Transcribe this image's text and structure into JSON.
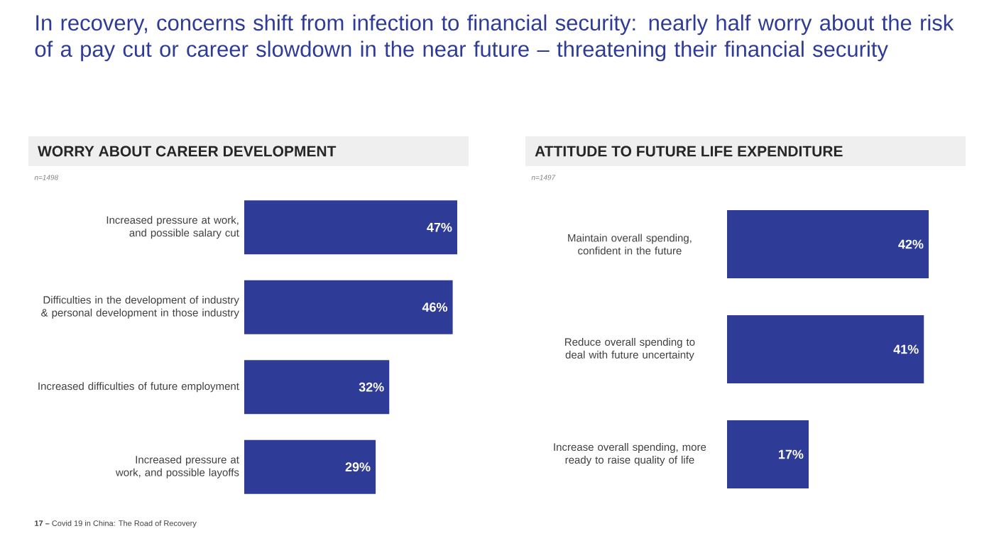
{
  "chart_data": [
    {
      "type": "bar",
      "orientation": "horizontal",
      "title": "WORRY ABOUT CAREER DEVELOPMENT",
      "annotations": [
        "In recovery, concerns shift from infection to financial security: nearly half worry about the risk of a pay cut or career slowdown in the near future – threatening their financial security",
        "n=1498",
        "**17 –** Covid 19 in China: The Road of Recovery"
      ],
      "categories": [
        "Increased pressure at work, and possible salary cut",
        "Difficulties in the development of industry & personal development in those industry",
        "Increased difficulties of future employment",
        "Increased pressure at work, and possible layoffs"
      ],
      "values": [
        47,
        46,
        32,
        29
      ],
      "value_labels": [
        "47%",
        "46%",
        "32%",
        "29%"
      ],
      "color": "#2e3b97"
    },
    {
      "type": "bar",
      "orientation": "horizontal",
      "title": "ATTITUDE TO FUTURE LIFE EXPENDITURE",
      "annotations": [
        "n=1497"
      ],
      "categories": [
        "Maintain overall spending, confident in the future",
        "Reduce overall spending to deal with future uncertainty",
        "Increase overall spending, more ready to raise quality of life"
      ],
      "values": [
        42,
        41,
        17
      ],
      "value_labels": [
        "42%",
        "41%",
        "17%"
      ],
      "color": "#2e3b97"
    }
  ]
}
